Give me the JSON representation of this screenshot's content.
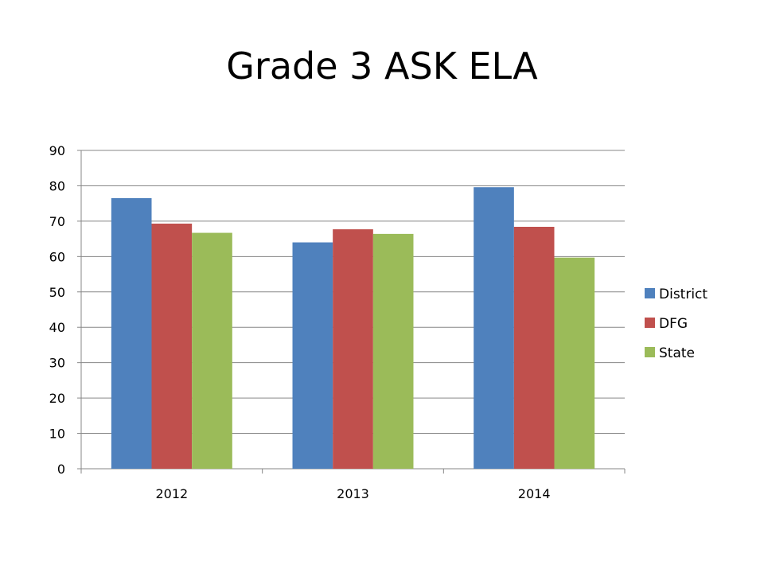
{
  "chart_data": {
    "type": "bar",
    "title": "Grade 3 ASK ELA",
    "categories": [
      "2012",
      "2013",
      "2014"
    ],
    "series": [
      {
        "name": "District",
        "color": "#4F81BD",
        "values": [
          76.5,
          64.0,
          79.6
        ]
      },
      {
        "name": "DFG",
        "color": "#C0504D",
        "values": [
          69.3,
          67.7,
          68.4
        ]
      },
      {
        "name": "State",
        "color": "#9BBB59",
        "values": [
          66.7,
          66.4,
          59.7
        ]
      }
    ],
    "ylim": [
      0,
      90
    ],
    "yticks": [
      0,
      10,
      20,
      30,
      40,
      50,
      60,
      70,
      80,
      90
    ],
    "grid": true,
    "legend_position": "right"
  }
}
